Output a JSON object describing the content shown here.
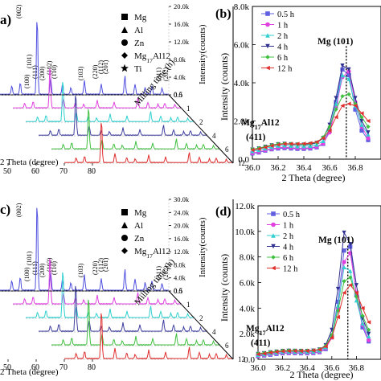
{
  "chart_data": [
    {
      "panel": "a",
      "type": "line",
      "title": "",
      "xlabel": "2 Theta (degree)",
      "ylabel": "Intensity(counts)",
      "zlabel": "Milling time (h)",
      "x_ticks": [
        "50",
        "60",
        "70",
        "80"
      ],
      "intensity_ticks": [
        "0.0",
        "4.0k",
        "8.0k",
        "12.0k",
        "16.0k",
        "20.0k"
      ],
      "time_ticks": [
        "0.5",
        "1",
        "2",
        "4",
        "6",
        "12"
      ],
      "legend": [
        {
          "symbol": "square",
          "label": "Mg"
        },
        {
          "symbol": "triangle",
          "label": "Al"
        },
        {
          "symbol": "circle",
          "label": "Zn"
        },
        {
          "symbol": "diamond",
          "label": "Mg17Al12"
        },
        {
          "symbol": "star",
          "label": "Ti"
        }
      ],
      "peak_labels": [
        "(002)",
        "(100)",
        "(101)",
        "(111)",
        "(200)",
        "(102)",
        "(110)",
        "(103)",
        "(220)",
        "(112)",
        "(201)",
        "(311)",
        "(202)"
      ],
      "series": [
        {
          "name": "0.5",
          "color": "#5050e0"
        },
        {
          "name": "1",
          "color": "#e040e0"
        },
        {
          "name": "2",
          "color": "#30d0d0"
        },
        {
          "name": "4",
          "color": "#4040a0"
        },
        {
          "name": "6",
          "color": "#40c040"
        },
        {
          "name": "12",
          "color": "#e03030"
        }
      ]
    },
    {
      "panel": "b",
      "type": "line",
      "title": "",
      "xlabel": "2 Theta (degree)",
      "ylabel": "Intensity (counts)",
      "xlim": [
        36.0,
        37.0
      ],
      "ylim": [
        0,
        8000
      ],
      "x_ticks": [
        "36.0",
        "36.2",
        "36.4",
        "36.6",
        "36.8"
      ],
      "y_ticks": [
        "0.0",
        "2.0k",
        "4.0k",
        "6.0k",
        "8.0k"
      ],
      "annotations": [
        "Mg (101)",
        "Mg17Al12",
        "(411)"
      ],
      "x": [
        36.0,
        36.05,
        36.1,
        36.15,
        36.2,
        36.25,
        36.3,
        36.35,
        36.4,
        36.45,
        36.5,
        36.55,
        36.6,
        36.65,
        36.7,
        36.75,
        36.8,
        36.85,
        36.9
      ],
      "series": [
        {
          "name": "0.5 h",
          "color": "#6060e0",
          "values": [
            300,
            350,
            450,
            520,
            560,
            580,
            560,
            540,
            540,
            560,
            620,
            800,
            1500,
            3000,
            4700,
            4400,
            2600,
            1500,
            1000
          ]
        },
        {
          "name": "1 h",
          "color": "#e040e0",
          "values": [
            320,
            380,
            470,
            540,
            600,
            620,
            600,
            580,
            580,
            600,
            650,
            820,
            1400,
            2700,
            4300,
            4600,
            3000,
            1700,
            1100
          ]
        },
        {
          "name": "2 h",
          "color": "#30d0d0",
          "values": [
            420,
            480,
            560,
            640,
            700,
            720,
            700,
            680,
            680,
            700,
            760,
            950,
            1600,
            2900,
            4400,
            4200,
            2800,
            1800,
            1300
          ]
        },
        {
          "name": "4 h",
          "color": "#303090",
          "values": [
            500,
            560,
            650,
            720,
            780,
            800,
            780,
            760,
            760,
            780,
            850,
            1100,
            1800,
            3200,
            4900,
            4700,
            3200,
            2000,
            1400
          ]
        },
        {
          "name": "6 h",
          "color": "#40c040",
          "values": [
            520,
            580,
            660,
            740,
            800,
            820,
            800,
            790,
            790,
            820,
            880,
            1150,
            1700,
            2600,
            3300,
            3400,
            2900,
            2200,
            1700
          ]
        },
        {
          "name": "12 h",
          "color": "#e03030",
          "values": [
            480,
            540,
            620,
            700,
            760,
            800,
            800,
            800,
            810,
            840,
            900,
            1100,
            1500,
            2200,
            2800,
            2900,
            2800,
            2400,
            2000
          ]
        }
      ]
    },
    {
      "panel": "c",
      "type": "line",
      "title": "",
      "xlabel": "2 Theta (degree)",
      "ylabel": "Intensity(counts)",
      "zlabel": "Milling time (h)",
      "x_ticks": [
        "50",
        "60",
        "70",
        "80"
      ],
      "intensity_ticks": [
        "0.0",
        "4.0k",
        "8.0k",
        "12.0k",
        "16.0k",
        "20.0k",
        "24.0k",
        "30.0k"
      ],
      "time_ticks": [
        "0.5",
        "1",
        "2",
        "4",
        "6",
        "12"
      ],
      "legend": [
        {
          "symbol": "square",
          "label": "Mg"
        },
        {
          "symbol": "triangle",
          "label": "Al"
        },
        {
          "symbol": "circle",
          "label": "Zn"
        },
        {
          "symbol": "diamond",
          "label": "Mg17Al12"
        }
      ],
      "peak_labels": [
        "(002)",
        "(100)",
        "(101)",
        "(111)",
        "(200)",
        "(102)",
        "(110)",
        "(103)",
        "(220)",
        "(112)",
        "(201)",
        "(311)",
        "(202)"
      ],
      "series": [
        {
          "name": "0.5",
          "color": "#5050e0"
        },
        {
          "name": "1",
          "color": "#e040e0"
        },
        {
          "name": "2",
          "color": "#30d0d0"
        },
        {
          "name": "4",
          "color": "#4040a0"
        },
        {
          "name": "6",
          "color": "#40c040"
        },
        {
          "name": "12",
          "color": "#e03030"
        }
      ]
    },
    {
      "panel": "d",
      "type": "line",
      "title": "",
      "xlabel": "2 Theta (degree)",
      "ylabel": "Intensity (counts)",
      "xlim": [
        36.0,
        37.0
      ],
      "ylim": [
        0,
        12000
      ],
      "x_ticks": [
        "36.0",
        "36.2",
        "36.4",
        "36.6",
        "36.8"
      ],
      "y_ticks": [
        "0.0",
        "2.0k",
        "4.0k",
        "6.0k",
        "8.0k",
        "10.0k",
        "12.0k"
      ],
      "annotations": [
        "Mg (101)",
        "Mg17Al12",
        "(411)"
      ],
      "x": [
        36.0,
        36.05,
        36.1,
        36.15,
        36.2,
        36.25,
        36.3,
        36.35,
        36.4,
        36.45,
        36.5,
        36.55,
        36.6,
        36.65,
        36.7,
        36.75,
        36.8,
        36.85,
        36.9
      ],
      "series": [
        {
          "name": "0.5 h",
          "color": "#6060e0",
          "values": [
            250,
            300,
            360,
            420,
            470,
            490,
            480,
            470,
            470,
            490,
            560,
            800,
            1800,
            4500,
            8500,
            8800,
            5000,
            2500,
            1400
          ]
        },
        {
          "name": "1 h",
          "color": "#e040e0",
          "values": [
            280,
            330,
            400,
            460,
            500,
            520,
            510,
            500,
            500,
            520,
            590,
            850,
            1700,
            4000,
            7600,
            8300,
            5200,
            2700,
            1500
          ]
        },
        {
          "name": "2 h",
          "color": "#30d0d0",
          "values": [
            350,
            400,
            470,
            530,
            580,
            600,
            590,
            580,
            580,
            600,
            680,
            950,
            1900,
            4200,
            7200,
            6900,
            4600,
            2800,
            1800
          ]
        },
        {
          "name": "4 h",
          "color": "#303090",
          "values": [
            420,
            470,
            540,
            600,
            650,
            670,
            660,
            650,
            650,
            680,
            760,
            1100,
            2300,
            5500,
            9900,
            9000,
            5800,
            3200,
            2000
          ]
        },
        {
          "name": "6 h",
          "color": "#40c040",
          "values": [
            450,
            500,
            570,
            630,
            680,
            700,
            690,
            680,
            680,
            700,
            780,
            1050,
            1900,
            3800,
            6100,
            6400,
            4900,
            3400,
            2300
          ]
        },
        {
          "name": "12 h",
          "color": "#e03030",
          "values": [
            400,
            450,
            520,
            580,
            630,
            650,
            650,
            650,
            660,
            690,
            760,
            1000,
            1700,
            3300,
            5200,
            5800,
            5200,
            4000,
            2900
          ]
        }
      ]
    }
  ],
  "panel_labels": {
    "a": "a)",
    "b": "(b)",
    "c": "c)",
    "d": "(d)"
  }
}
